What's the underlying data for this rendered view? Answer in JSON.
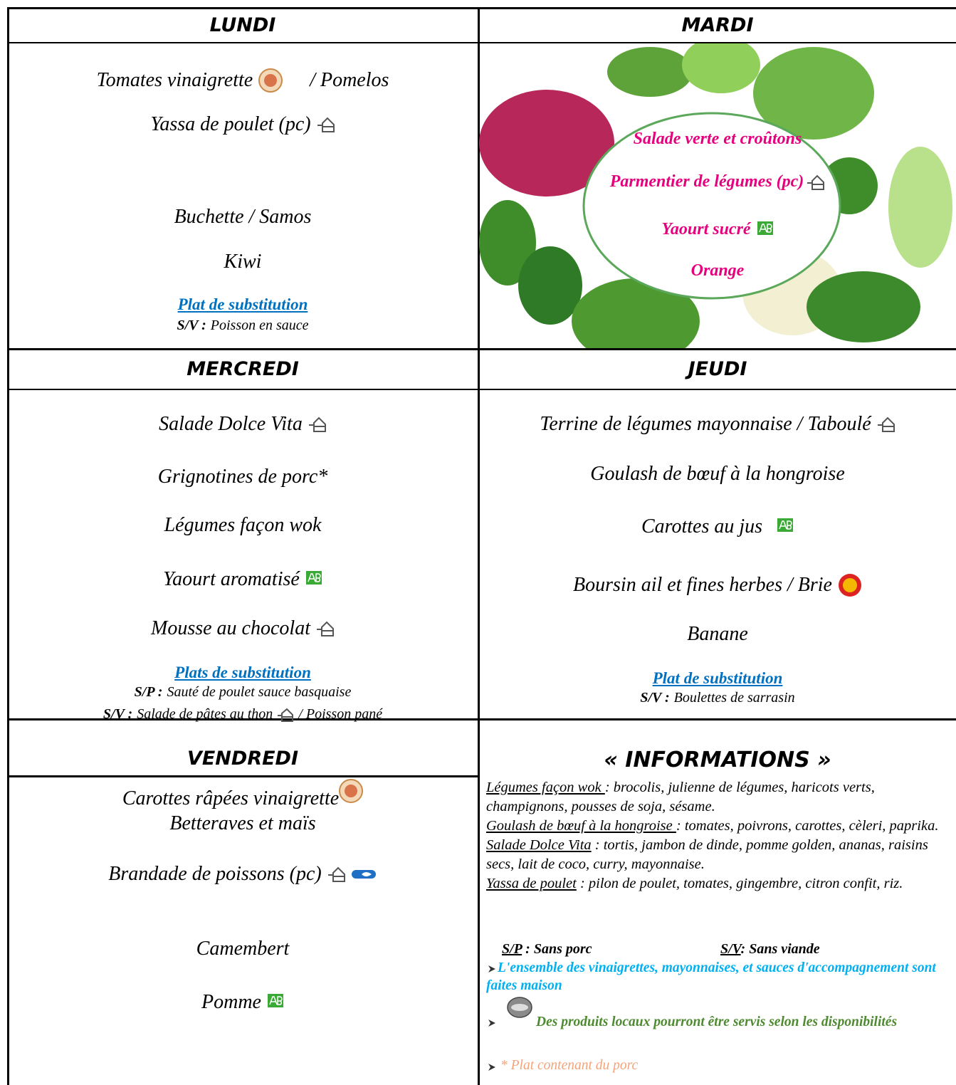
{
  "lundi": {
    "day": "LUNDI",
    "starter_1": "Tomates vinaigrette",
    "starter_2": "/   Pomelos",
    "main": "Yassa de poulet (pc)",
    "cheese": "Buchette  /  Samos",
    "dessert": "Kiwi",
    "substitution_title": "Plat de substitution",
    "substitution": [
      {
        "code": "S/V :",
        "text": "Poisson en sauce"
      }
    ]
  },
  "mardi": {
    "day": "MARDI",
    "items": [
      "Salade verte et croûtons",
      "Parmentier de légumes (pc)",
      "Yaourt sucré",
      "Orange"
    ]
  },
  "mercredi": {
    "day": "MERCREDI",
    "items": [
      "Salade Dolce Vita",
      "Grignotines de porc*",
      "Légumes façon wok",
      "Yaourt aromatisé",
      "Mousse au chocolat"
    ],
    "substitution_title": "Plats de substitution",
    "substitution": [
      {
        "code": "S/P :",
        "text": "Sauté de poulet sauce basquaise"
      },
      {
        "code": "S/V :",
        "text": "Salade de pâtes au thon",
        "text_2": "/  Poisson pané"
      }
    ]
  },
  "jeudi": {
    "day": "JEUDI",
    "items": [
      "Terrine de légumes mayonnaise  /  Taboulé",
      "Goulash de bœuf à la hongroise",
      "Carottes au jus",
      "Boursin ail et fines herbes  /  Brie",
      "Banane"
    ],
    "substitution_title": "Plat de substitution",
    "substitution": [
      {
        "code": "S/V :",
        "text": "Boulettes de sarrasin"
      }
    ]
  },
  "vendredi": {
    "day": "VENDREDI",
    "items": [
      "Carottes râpées vinaigrette",
      "Betteraves et maïs",
      "Brandade de poissons (pc)",
      "Camembert",
      "Pomme"
    ]
  },
  "informations": {
    "title": "« INFORMATIONS »",
    "definitions": [
      {
        "term": "Légumes façon wok ",
        "text": ": brocolis, julienne de légumes, haricots verts, champignons, pousses de soja, sésame."
      },
      {
        "term": "Goulash de bœuf à la hongroise ",
        "text": ": tomates, poivrons, carottes, cèleri, paprika."
      },
      {
        "term": "Salade Dolce Vita",
        "text": " : tortis, jambon de dinde, pomme golden, ananas, raisins secs, lait de coco, curry, mayonnaise."
      },
      {
        "term": "Yassa de poulet",
        "text": " : pilon de poulet, tomates, gingembre, citron confit, riz."
      }
    ],
    "legend": [
      {
        "code": "S/P",
        "text": " : Sans porc"
      },
      {
        "code": "S/V",
        "text": ": Sans viande"
      }
    ],
    "notes": [
      "L'ensemble des vinaigrettes, mayonnaises, et sauces d'accompagnement sont faites maison",
      "Des produits locaux pourront être servis selon les disponibilités",
      "* Plat contenant du porc"
    ]
  }
}
